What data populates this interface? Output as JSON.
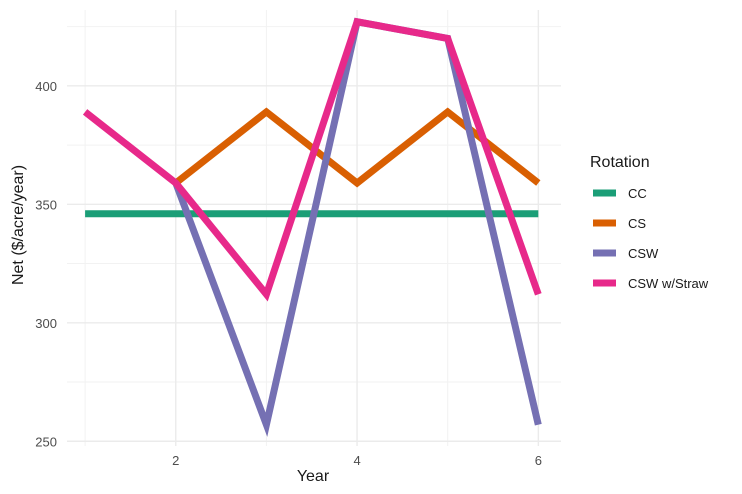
{
  "chart_data": {
    "type": "line",
    "title": "",
    "xlabel": "Year",
    "ylabel": "Net ($/acre/year)",
    "x": [
      1,
      2,
      3,
      4,
      5,
      6
    ],
    "xticks": [
      2,
      4,
      6
    ],
    "yticks": [
      250,
      300,
      350,
      400
    ],
    "xlim": [
      0.8,
      6.25
    ],
    "ylim": [
      248,
      432
    ],
    "grid": true,
    "legend_title": "Rotation",
    "legend_position": "right",
    "series": [
      {
        "name": "CC",
        "color": "#1b9e77",
        "values": [
          346,
          346,
          346,
          346,
          346,
          346
        ]
      },
      {
        "name": "CS",
        "color": "#d95f02",
        "values": [
          null,
          359,
          389,
          359,
          389,
          359
        ]
      },
      {
        "name": "CSW",
        "color": "#7570b3",
        "values": [
          null,
          359,
          257,
          427,
          420,
          257
        ]
      },
      {
        "name": "CSW w/Straw",
        "color": "#e7298a",
        "values": [
          389,
          359,
          312,
          427,
          420,
          312
        ]
      }
    ]
  }
}
